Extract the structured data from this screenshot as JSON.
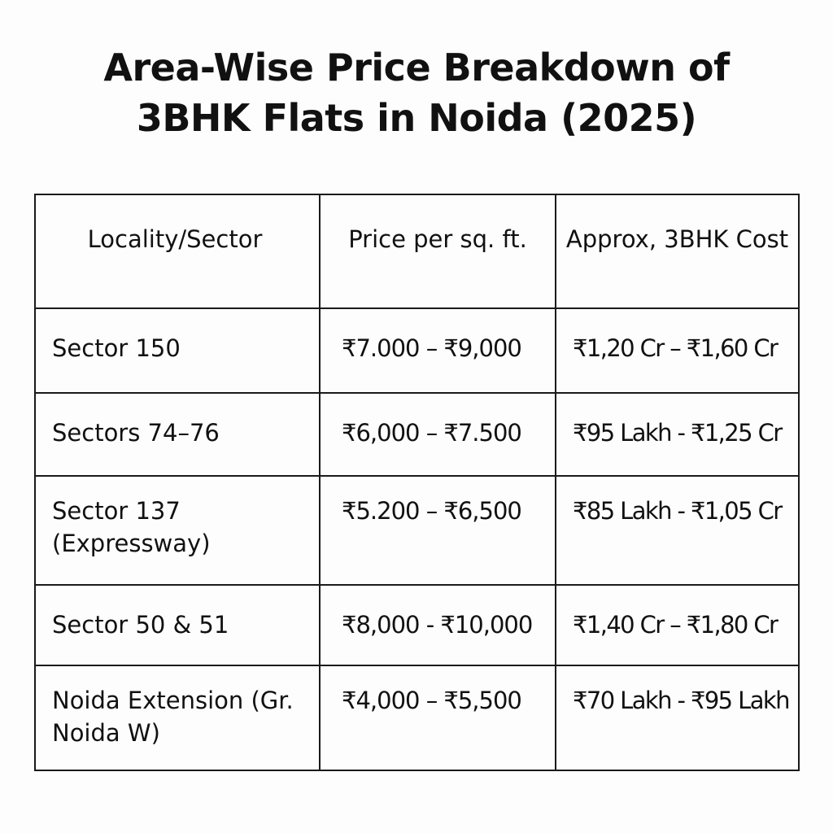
{
  "title": {
    "line1": "Area-Wise Price Breakdown of",
    "line2": "3BHK Flats in Noida (2025)"
  },
  "table": {
    "headers": {
      "locality": "Locality/Sector",
      "price_per_sqft": "Price per sq. ft.",
      "approx_cost": "Approx, 3BHK Cost"
    },
    "rows": [
      {
        "locality": "Sector 150",
        "price_per_sqft": "₹7.000 – ₹9,000",
        "approx_cost": "₹1,20 Cr – ₹1,60 Cr"
      },
      {
        "locality": "Sectors 74–76",
        "price_per_sqft": "₹6,000 – ₹7.500",
        "approx_cost": "₹95 Lakh - ₹1,25 Cr"
      },
      {
        "locality": "Sector 137 (Expressway)",
        "price_per_sqft": "₹5.200 – ₹6,500",
        "approx_cost": "₹85 Lakh - ₹1,05 Cr"
      },
      {
        "locality": "Sector 50 & 51",
        "price_per_sqft": "₹8,000 - ₹10,000",
        "approx_cost": "₹1,40 Cr – ₹1,80 Cr"
      },
      {
        "locality": "Noida Extension (Gr. Noida W)",
        "price_per_sqft": "₹4,000 – ₹5,500",
        "approx_cost": "₹70 Lakh - ₹95 Lakh"
      }
    ]
  }
}
